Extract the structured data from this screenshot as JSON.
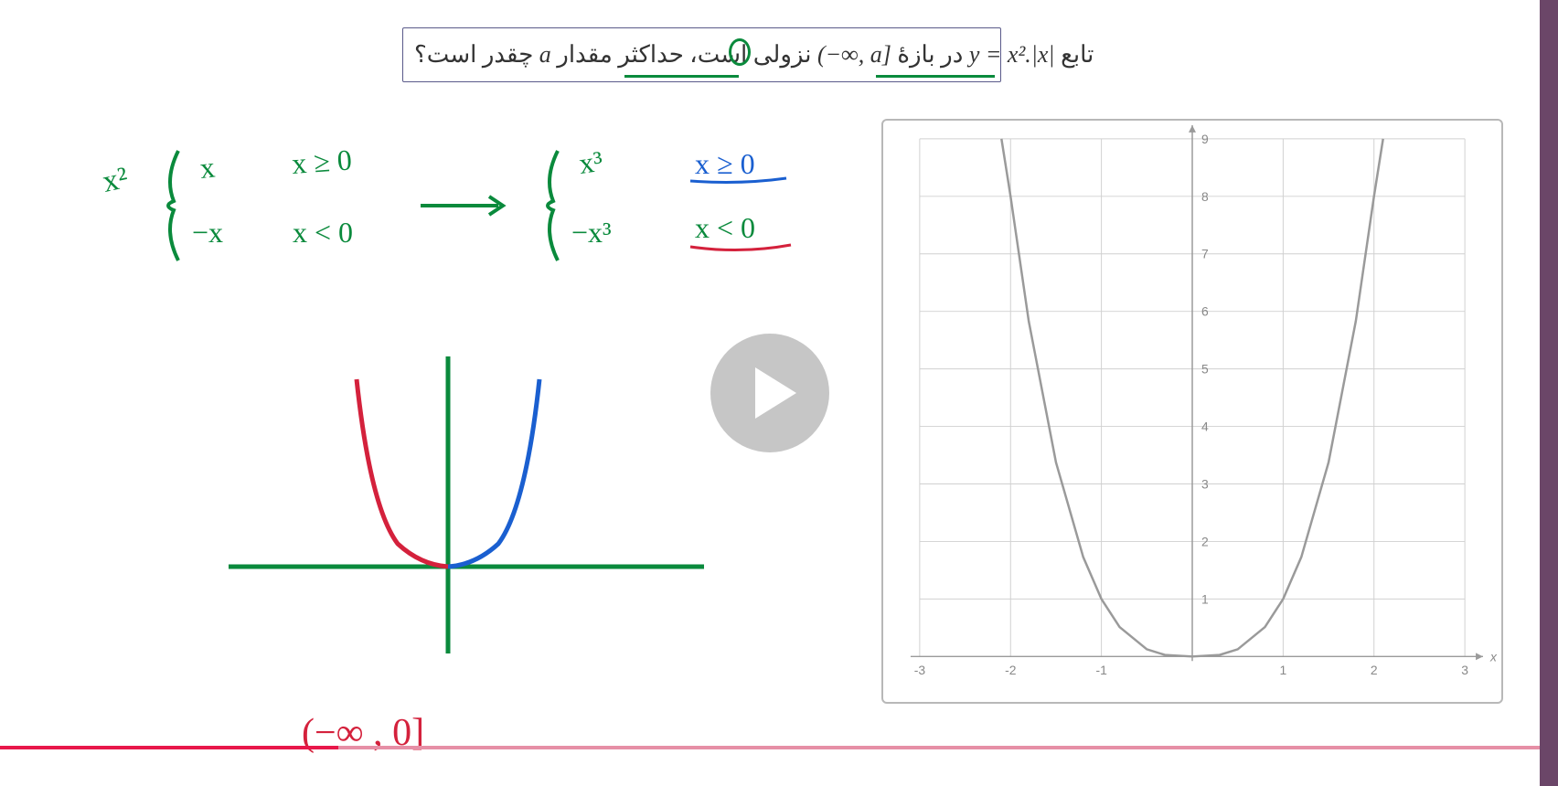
{
  "question": {
    "text_rtl_prefix": "تابع ",
    "equation": "y = x².|x|",
    "text_mid1": " در بازهٔ ",
    "interval": "(−∞, a]",
    "text_mid2": " نزولی است، حداکثر مقدار ",
    "var": "a",
    "text_end": " چقدر است؟",
    "box_border_color": "#5a5a8a",
    "underline_color": "#0a8a3c"
  },
  "graph": {
    "xmin": -3,
    "xmax": 3,
    "xstep": 1,
    "ymin": 0,
    "ymax": 9,
    "ystep": 1,
    "axis_label_x": "x",
    "grid_color": "#d0d0d0",
    "axis_color": "#9a9a9a",
    "curve_color": "#9a9a9a",
    "label_color": "#888888",
    "label_fontsize": 14,
    "type": "cubic_abs",
    "sample_points_x": [
      -2.1,
      -2,
      -1.8,
      -1.5,
      -1.2,
      -1,
      -0.8,
      -0.5,
      -0.3,
      0,
      0.3,
      0.5,
      0.8,
      1,
      1.2,
      1.5,
      1.8,
      2,
      2.1
    ],
    "sample_points_y": [
      9.261,
      8,
      5.832,
      3.375,
      1.728,
      1,
      0.512,
      0.125,
      0.027,
      0,
      0.027,
      0.125,
      0.512,
      1,
      1.728,
      3.375,
      5.832,
      8,
      9.261
    ]
  },
  "handwriting": {
    "pen_green": "#0a8a3c",
    "pen_blue": "#1a5fd0",
    "pen_red": "#d4213c",
    "piecewise_left": {
      "outer": "x²",
      "top_expr": "x",
      "top_cond": "x ≥ 0",
      "bot_expr": "−x",
      "bot_cond": "x < 0"
    },
    "arrow": "→",
    "piecewise_right": {
      "top_expr": "x³",
      "top_cond": "x ≥ 0",
      "top_cond_color": "#1a5fd0",
      "bot_expr": "−x³",
      "bot_cond": "x < 0",
      "bot_cond_color": "#d4213c"
    },
    "answer_interval": "(−∞ , 0]",
    "answer_color": "#d4213c",
    "sketch_axes_color": "#0a8a3c",
    "sketch_blue_branch": "#1a5fd0",
    "sketch_red_branch": "#d4213c"
  },
  "player": {
    "play_bg": "rgba(128,128,128,0.45)",
    "play_icon_color": "#ffffff",
    "progress_bg": "#e68fa6",
    "progress_fg": "#e8174a",
    "progress_pct": 22
  },
  "frame": {
    "right_bar_color": "#6b4668"
  }
}
